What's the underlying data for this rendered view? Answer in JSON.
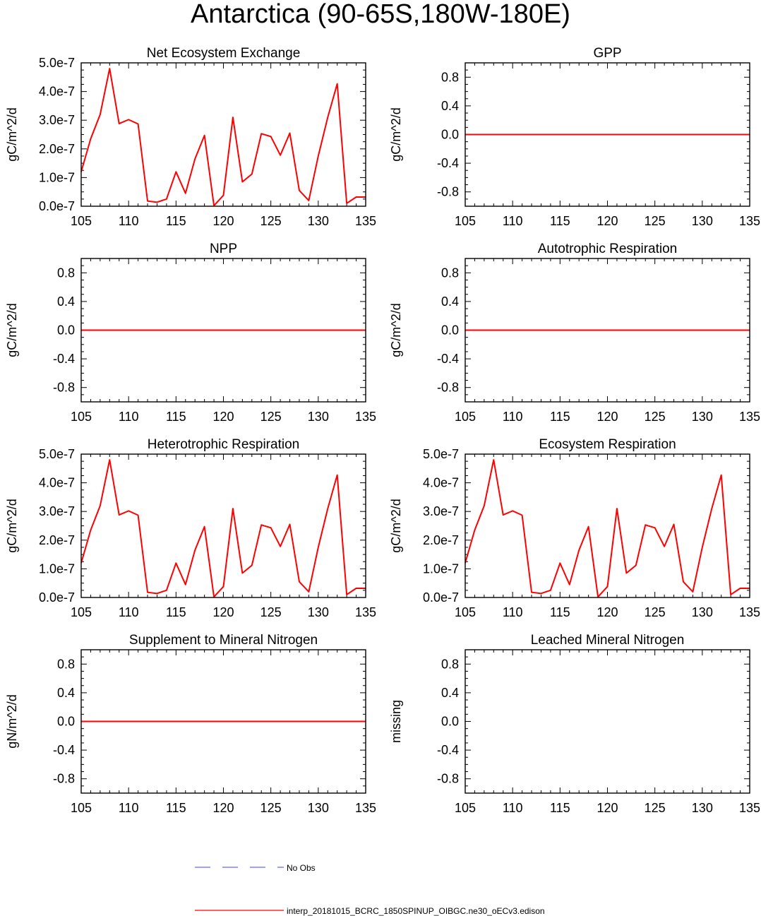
{
  "title": "Antarctica (90-65S,180W-180E)",
  "colors": {
    "model": "#ff0000",
    "obs": "#6666ff",
    "axis": "#000000"
  },
  "legend": {
    "obs_label": "No Obs",
    "model_label": "interp_20181015_BCRC_1850SPINUP_OIBGC.ne30_oECv3.edison"
  },
  "chart_data": [
    {
      "type": "line",
      "title": "Net Ecosystem Exchange",
      "ylabel": "gC/m^2/d",
      "xlim": [
        105,
        135
      ],
      "ylim": [
        0,
        5e-07
      ],
      "xticks": [
        "105",
        "110",
        "115",
        "120",
        "125",
        "130",
        "135"
      ],
      "yticks": [
        "0.0e-7",
        "1.0e-7",
        "2.0e-7",
        "3.0e-7",
        "4.0e-7",
        "5.0e-7"
      ],
      "ytick_values": [
        0,
        1e-07,
        2e-07,
        3e-07,
        4e-07,
        5e-07
      ],
      "series": [
        {
          "x": [
            105,
            106,
            107,
            108,
            109,
            110,
            111,
            112,
            113,
            114,
            115,
            116,
            117,
            118,
            119,
            120,
            121,
            122,
            123,
            124,
            125,
            126,
            127,
            128,
            129,
            130,
            131,
            132,
            133,
            134,
            135
          ],
          "values": [
            1.2e-07,
            2.35e-07,
            3.2e-07,
            4.8e-07,
            2.88e-07,
            3.02e-07,
            2.87e-07,
            1.8e-08,
            1.4e-08,
            2.5e-08,
            1.2e-07,
            4.5e-08,
            1.65e-07,
            2.47e-07,
            2e-09,
            3.8e-08,
            3.1e-07,
            8.5e-08,
            1.12e-07,
            2.53e-07,
            2.43e-07,
            1.78e-07,
            2.55e-07,
            5.5e-08,
            2e-08,
            1.75e-07,
            3.1e-07,
            4.27e-07,
            1e-08,
            3.2e-08,
            3.2e-08
          ]
        }
      ]
    },
    {
      "type": "line",
      "title": "GPP",
      "ylabel": "gC/m^2/d",
      "xlim": [
        105,
        135
      ],
      "ylim": [
        -1,
        1
      ],
      "xticks": [
        "105",
        "110",
        "115",
        "120",
        "125",
        "130",
        "135"
      ],
      "yticks": [
        "-0.8",
        "-0.4",
        "0.0",
        "0.4",
        "0.8"
      ],
      "ytick_values": [
        -0.8,
        -0.4,
        0,
        0.4,
        0.8
      ],
      "series": [
        {
          "x": [
            105,
            135
          ],
          "values": [
            0,
            0
          ]
        }
      ]
    },
    {
      "type": "line",
      "title": "NPP",
      "ylabel": "gC/m^2/d",
      "xlim": [
        105,
        135
      ],
      "ylim": [
        -1,
        1
      ],
      "xticks": [
        "105",
        "110",
        "115",
        "120",
        "125",
        "130",
        "135"
      ],
      "yticks": [
        "-0.8",
        "-0.4",
        "0.0",
        "0.4",
        "0.8"
      ],
      "ytick_values": [
        -0.8,
        -0.4,
        0,
        0.4,
        0.8
      ],
      "series": [
        {
          "x": [
            105,
            135
          ],
          "values": [
            0,
            0
          ]
        }
      ]
    },
    {
      "type": "line",
      "title": "Autotrophic Respiration",
      "ylabel": "gC/m^2/d",
      "xlim": [
        105,
        135
      ],
      "ylim": [
        -1,
        1
      ],
      "xticks": [
        "105",
        "110",
        "115",
        "120",
        "125",
        "130",
        "135"
      ],
      "yticks": [
        "-0.8",
        "-0.4",
        "0.0",
        "0.4",
        "0.8"
      ],
      "ytick_values": [
        -0.8,
        -0.4,
        0,
        0.4,
        0.8
      ],
      "series": [
        {
          "x": [
            105,
            135
          ],
          "values": [
            0,
            0
          ]
        }
      ]
    },
    {
      "type": "line",
      "title": "Heterotrophic Respiration",
      "ylabel": "gC/m^2/d",
      "xlim": [
        105,
        135
      ],
      "ylim": [
        0,
        5e-07
      ],
      "xticks": [
        "105",
        "110",
        "115",
        "120",
        "125",
        "130",
        "135"
      ],
      "yticks": [
        "0.0e-7",
        "1.0e-7",
        "2.0e-7",
        "3.0e-7",
        "4.0e-7",
        "5.0e-7"
      ],
      "ytick_values": [
        0,
        1e-07,
        2e-07,
        3e-07,
        4e-07,
        5e-07
      ],
      "series": [
        {
          "x": [
            105,
            106,
            107,
            108,
            109,
            110,
            111,
            112,
            113,
            114,
            115,
            116,
            117,
            118,
            119,
            120,
            121,
            122,
            123,
            124,
            125,
            126,
            127,
            128,
            129,
            130,
            131,
            132,
            133,
            134,
            135
          ],
          "values": [
            1.2e-07,
            2.35e-07,
            3.2e-07,
            4.8e-07,
            2.88e-07,
            3.02e-07,
            2.87e-07,
            1.8e-08,
            1.4e-08,
            2.5e-08,
            1.2e-07,
            4.5e-08,
            1.65e-07,
            2.47e-07,
            2e-09,
            3.8e-08,
            3.1e-07,
            8.5e-08,
            1.12e-07,
            2.53e-07,
            2.43e-07,
            1.78e-07,
            2.55e-07,
            5.5e-08,
            2e-08,
            1.75e-07,
            3.1e-07,
            4.27e-07,
            1e-08,
            3.2e-08,
            3.2e-08
          ]
        }
      ]
    },
    {
      "type": "line",
      "title": "Ecosystem Respiration",
      "ylabel": "gC/m^2/d",
      "xlim": [
        105,
        135
      ],
      "ylim": [
        0,
        5e-07
      ],
      "xticks": [
        "105",
        "110",
        "115",
        "120",
        "125",
        "130",
        "135"
      ],
      "yticks": [
        "0.0e-7",
        "1.0e-7",
        "2.0e-7",
        "3.0e-7",
        "4.0e-7",
        "5.0e-7"
      ],
      "ytick_values": [
        0,
        1e-07,
        2e-07,
        3e-07,
        4e-07,
        5e-07
      ],
      "series": [
        {
          "x": [
            105,
            106,
            107,
            108,
            109,
            110,
            111,
            112,
            113,
            114,
            115,
            116,
            117,
            118,
            119,
            120,
            121,
            122,
            123,
            124,
            125,
            126,
            127,
            128,
            129,
            130,
            131,
            132,
            133,
            134,
            135
          ],
          "values": [
            1.2e-07,
            2.35e-07,
            3.2e-07,
            4.8e-07,
            2.88e-07,
            3.02e-07,
            2.87e-07,
            1.8e-08,
            1.4e-08,
            2.5e-08,
            1.2e-07,
            4.5e-08,
            1.65e-07,
            2.47e-07,
            2e-09,
            3.8e-08,
            3.1e-07,
            8.5e-08,
            1.12e-07,
            2.53e-07,
            2.43e-07,
            1.78e-07,
            2.55e-07,
            5.5e-08,
            2e-08,
            1.75e-07,
            3.1e-07,
            4.27e-07,
            1e-08,
            3.2e-08,
            3.2e-08
          ]
        }
      ]
    },
    {
      "type": "line",
      "title": "Supplement to Mineral Nitrogen",
      "ylabel": "gN/m^2/d",
      "xlim": [
        105,
        135
      ],
      "ylim": [
        -1,
        1
      ],
      "xticks": [
        "105",
        "110",
        "115",
        "120",
        "125",
        "130",
        "135"
      ],
      "yticks": [
        "-0.8",
        "-0.4",
        "0.0",
        "0.4",
        "0.8"
      ],
      "ytick_values": [
        -0.8,
        -0.4,
        0,
        0.4,
        0.8
      ],
      "series": [
        {
          "x": [
            105,
            135
          ],
          "values": [
            0,
            0
          ]
        }
      ]
    },
    {
      "type": "line",
      "title": "Leached Mineral Nitrogen",
      "ylabel": "missing",
      "xlim": [
        105,
        135
      ],
      "ylim": [
        -1,
        1
      ],
      "xticks": [
        "105",
        "110",
        "115",
        "120",
        "125",
        "130",
        "135"
      ],
      "yticks": [
        "-0.8",
        "-0.4",
        "0.0",
        "0.4",
        "0.8"
      ],
      "ytick_values": [
        -0.8,
        -0.4,
        0,
        0.4,
        0.8
      ],
      "series": []
    }
  ]
}
